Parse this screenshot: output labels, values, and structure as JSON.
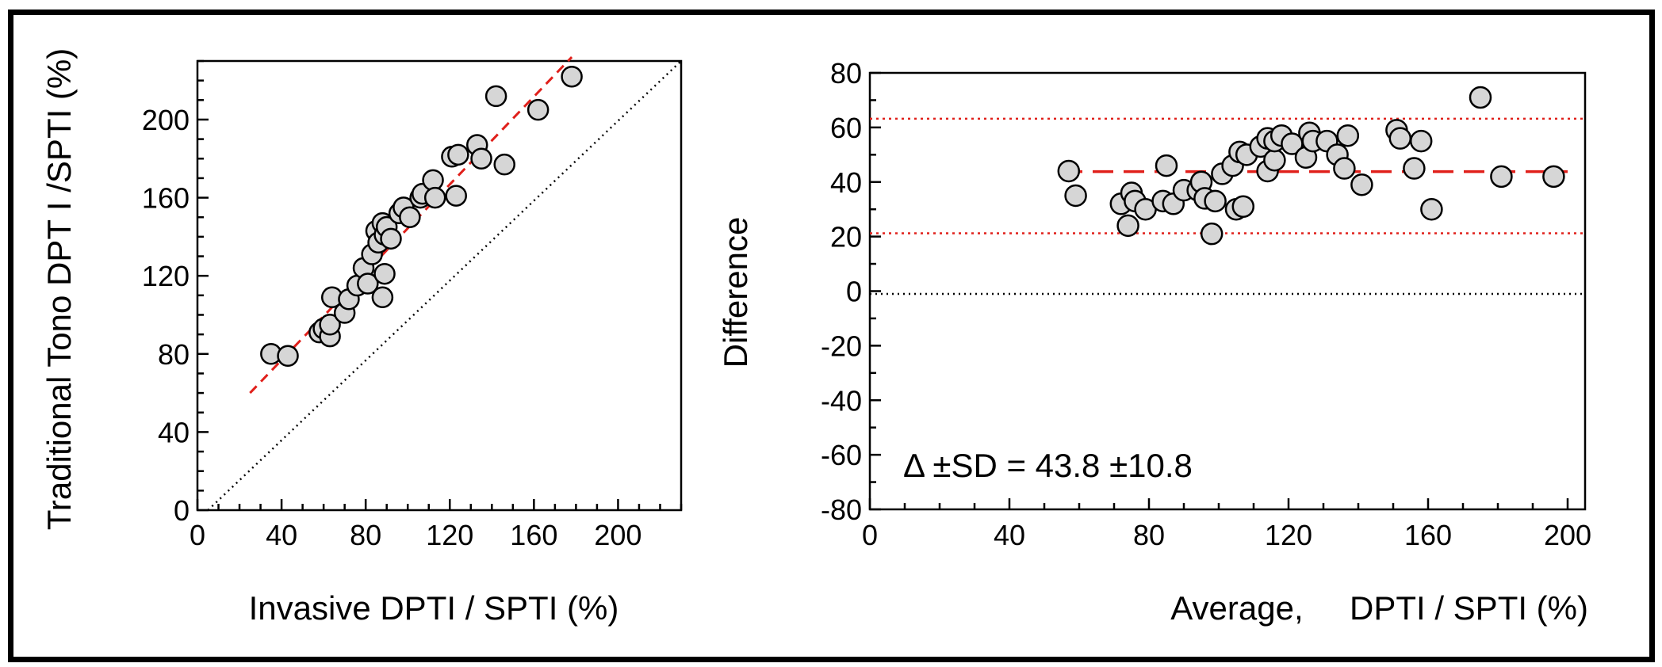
{
  "chart_data": [
    {
      "type": "scatter",
      "xlabel": "Invasive DPTI / SPTI (%)",
      "ylabel": "Traditional Tono DPT I /SPTI (%)",
      "xlim": [
        0,
        230
      ],
      "ylim": [
        0,
        230
      ],
      "xticks": [
        0,
        40,
        80,
        120,
        160,
        200
      ],
      "yticks": [
        0,
        40,
        80,
        120,
        160,
        200
      ],
      "minor_tick_step": 10,
      "identity_line": {
        "from": [
          5,
          0
        ],
        "to": [
          230,
          230
        ],
        "style": "dotted",
        "color": "#000000"
      },
      "regression_line": {
        "from": [
          25,
          60
        ],
        "to": [
          178,
          232
        ],
        "style": "dashed",
        "color": "#e0201b"
      },
      "points": [
        [
          35,
          80
        ],
        [
          43,
          79
        ],
        [
          58,
          91
        ],
        [
          60,
          93
        ],
        [
          63,
          89
        ],
        [
          63,
          95
        ],
        [
          64,
          109
        ],
        [
          70,
          101
        ],
        [
          72,
          108
        ],
        [
          76,
          115
        ],
        [
          79,
          124
        ],
        [
          81,
          116
        ],
        [
          83,
          131
        ],
        [
          85,
          143
        ],
        [
          86,
          137
        ],
        [
          88,
          147
        ],
        [
          88,
          109
        ],
        [
          89,
          121
        ],
        [
          89,
          141
        ],
        [
          90,
          145
        ],
        [
          92,
          139
        ],
        [
          96,
          152
        ],
        [
          98,
          155
        ],
        [
          101,
          150
        ],
        [
          106,
          160
        ],
        [
          107,
          162
        ],
        [
          112,
          169
        ],
        [
          113,
          160
        ],
        [
          121,
          181
        ],
        [
          123,
          161
        ],
        [
          124,
          182
        ],
        [
          133,
          187
        ],
        [
          135,
          180
        ],
        [
          142,
          212
        ],
        [
          146,
          177
        ],
        [
          162,
          205
        ],
        [
          178,
          222
        ]
      ]
    },
    {
      "type": "scatter",
      "xlabel": "Average,     DPTI / SPTI (%)",
      "ylabel": "Difference",
      "xlim": [
        0,
        205
      ],
      "ylim": [
        -80,
        80
      ],
      "xticks": [
        0,
        40,
        80,
        120,
        160,
        200
      ],
      "yticks": [
        80,
        60,
        40,
        20,
        0,
        -20,
        -40,
        -60,
        -80
      ],
      "minor_tick_step_x": 10,
      "minor_tick_step_y": 10,
      "mean_line": {
        "y": 43.8,
        "style": "dashed",
        "color": "#e0201b",
        "x_from": 55,
        "x_to": 200
      },
      "limit_lines": [
        {
          "y": 63.2,
          "style": "dotted",
          "color": "#e0201b"
        },
        {
          "y": 21.2,
          "style": "dotted",
          "color": "#e0201b"
        }
      ],
      "zero_line": {
        "y": -1,
        "style": "dotted",
        "color": "#000000"
      },
      "annotation": "Δ ±SD = 43.8 ±10.8",
      "points": [
        [
          57,
          44
        ],
        [
          59,
          35
        ],
        [
          72,
          32
        ],
        [
          74,
          24
        ],
        [
          75,
          36
        ],
        [
          76,
          33
        ],
        [
          79,
          30
        ],
        [
          84,
          33
        ],
        [
          85,
          46
        ],
        [
          87,
          32
        ],
        [
          90,
          37
        ],
        [
          94,
          37
        ],
        [
          95,
          40
        ],
        [
          96,
          34
        ],
        [
          98,
          21
        ],
        [
          99,
          33
        ],
        [
          101,
          43
        ],
        [
          104,
          46
        ],
        [
          105,
          30
        ],
        [
          106,
          51
        ],
        [
          107,
          31
        ],
        [
          108,
          50
        ],
        [
          112,
          53
        ],
        [
          114,
          56
        ],
        [
          114,
          44
        ],
        [
          116,
          48
        ],
        [
          116,
          55
        ],
        [
          118,
          57
        ],
        [
          121,
          54
        ],
        [
          125,
          49
        ],
        [
          126,
          58
        ],
        [
          127,
          55
        ],
        [
          131,
          55
        ],
        [
          134,
          50
        ],
        [
          136,
          45
        ],
        [
          137,
          57
        ],
        [
          141,
          39
        ],
        [
          151,
          59
        ],
        [
          152,
          56
        ],
        [
          156,
          45
        ],
        [
          158,
          55
        ],
        [
          161,
          30
        ],
        [
          175,
          71
        ],
        [
          181,
          42
        ],
        [
          196,
          42
        ]
      ]
    }
  ]
}
